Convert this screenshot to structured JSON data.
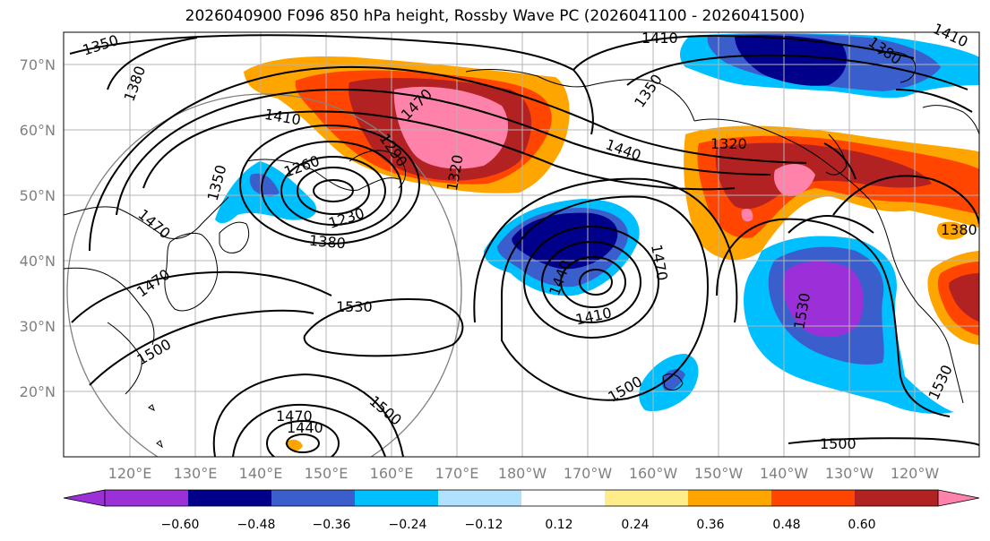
{
  "title": "2026040900 F096 850 hPa height, Rossby Wave PC (2026041100 - 2026041500)",
  "map": {
    "lat_labels": [
      "70°N",
      "60°N",
      "50°N",
      "40°N",
      "30°N",
      "20°N"
    ],
    "lon_labels": [
      "120°E",
      "130°E",
      "140°E",
      "150°E",
      "160°E",
      "170°E",
      "180°W",
      "170°W",
      "160°W",
      "150°W",
      "140°W",
      "130°W",
      "120°W"
    ],
    "contour_labels": [
      {
        "text": "1350",
        "name": "contour-label-1350-a"
      },
      {
        "text": "1380",
        "name": "contour-label-1380-a"
      },
      {
        "text": "1410",
        "name": "contour-label-1410-a"
      },
      {
        "text": "1470",
        "name": "contour-label-1470-a"
      },
      {
        "text": "1290",
        "name": "contour-label-1290"
      },
      {
        "text": "1260",
        "name": "contour-label-1260"
      },
      {
        "text": "1350",
        "name": "contour-label-1350-b"
      },
      {
        "text": "1230",
        "name": "contour-label-1230"
      },
      {
        "text": "1320",
        "name": "contour-label-1320-a"
      },
      {
        "text": "1380",
        "name": "contour-label-1380-b"
      },
      {
        "text": "1470",
        "name": "contour-label-1470-b"
      },
      {
        "text": "1470",
        "name": "contour-label-1470-c"
      },
      {
        "text": "1500",
        "name": "contour-label-1500-a"
      },
      {
        "text": "1530",
        "name": "contour-label-1530-a"
      },
      {
        "text": "1470",
        "name": "contour-label-1470-d"
      },
      {
        "text": "1440",
        "name": "contour-label-1440-a"
      },
      {
        "text": "1500",
        "name": "contour-label-1500-b"
      },
      {
        "text": "1440",
        "name": "contour-label-1440-b"
      },
      {
        "text": "1410",
        "name": "contour-label-1410-b"
      },
      {
        "text": "1470",
        "name": "contour-label-1470-e"
      },
      {
        "text": "1500",
        "name": "contour-label-1500-c"
      },
      {
        "text": "1410",
        "name": "contour-label-1410-c"
      },
      {
        "text": "1350",
        "name": "contour-label-1350-c"
      },
      {
        "text": "1440",
        "name": "contour-label-1440-c"
      },
      {
        "text": "1320",
        "name": "contour-label-1320-b"
      },
      {
        "text": "1380",
        "name": "contour-label-1380-c"
      },
      {
        "text": "1410",
        "name": "contour-label-1410-d"
      },
      {
        "text": "1530",
        "name": "contour-label-1530-b"
      },
      {
        "text": "1530",
        "name": "contour-label-1530-c"
      },
      {
        "text": "1500",
        "name": "contour-label-1500-d"
      },
      {
        "text": "1380",
        "name": "contour-label-1380-d"
      }
    ]
  },
  "colorbar": {
    "colors": [
      "#9b30d9",
      "#00008b",
      "#3a5fcd",
      "#00bfff",
      "#b0e2ff",
      "#ffffff",
      "#ffec8b",
      "#ffa500",
      "#ff4500",
      "#b22222",
      "#ff82ab"
    ],
    "tick_labels": [
      "−0.60",
      "−0.48",
      "−0.36",
      "−0.24",
      "−0.12",
      "0.12",
      "0.24",
      "0.36",
      "0.48",
      "0.60"
    ]
  }
}
